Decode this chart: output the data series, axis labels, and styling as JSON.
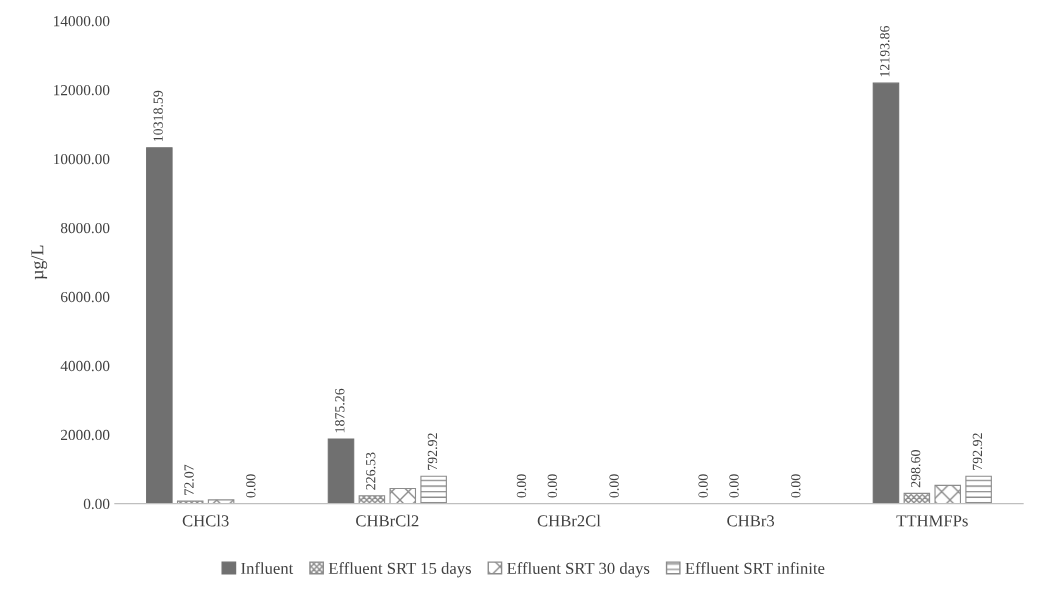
{
  "chart_data": {
    "type": "bar",
    "ylabel": "µg/L",
    "categories": [
      "CHCl3",
      "CHBrCl2",
      "CHBr2Cl",
      "CHBr3",
      "TTHMFPs"
    ],
    "series": [
      {
        "name": "Influent",
        "color": "#707070",
        "values": [
          10318.59,
          1875.26,
          0.0,
          0.0,
          12193.86
        ],
        "value_labels": [
          "10318.59",
          "1875.26",
          "0.00",
          "0.00",
          "12193.86"
        ]
      },
      {
        "name": "Effluent SRT 15 days",
        "color": "#8c8c8c",
        "values": [
          72.07,
          226.53,
          0.0,
          0.0,
          298.6
        ],
        "value_labels": [
          "72.07",
          "226.53",
          "0.00",
          "0.00",
          "298.60"
        ]
      },
      {
        "name": "Effluent SRT 30 days",
        "color": "#8c8c8c",
        "values": [
          110,
          440,
          0.0,
          0.0,
          530
        ],
        "value_labels": [
          null,
          null,
          null,
          null,
          null
        ]
      },
      {
        "name": "Effluent SRT infinite",
        "color": "#8c8c8c",
        "values": [
          0.0,
          792.92,
          0.0,
          0.0,
          792.92
        ],
        "value_labels": [
          "0.00",
          "792.92",
          "0.00",
          "0.00",
          "792.92"
        ]
      }
    ],
    "ylim": [
      0,
      14000
    ],
    "yticks": [
      {
        "value": 0,
        "label": "0.00"
      },
      {
        "value": 2000,
        "label": "2000.00"
      },
      {
        "value": 4000,
        "label": "4000.00"
      },
      {
        "value": 6000,
        "label": "6000.00"
      },
      {
        "value": 8000,
        "label": "8000.00"
      },
      {
        "value": 10000,
        "label": "10000.00"
      },
      {
        "value": 12000,
        "label": "12000.00"
      },
      {
        "value": 14000,
        "label": "14000.00"
      }
    ],
    "grid": false,
    "legend": "bottom"
  }
}
